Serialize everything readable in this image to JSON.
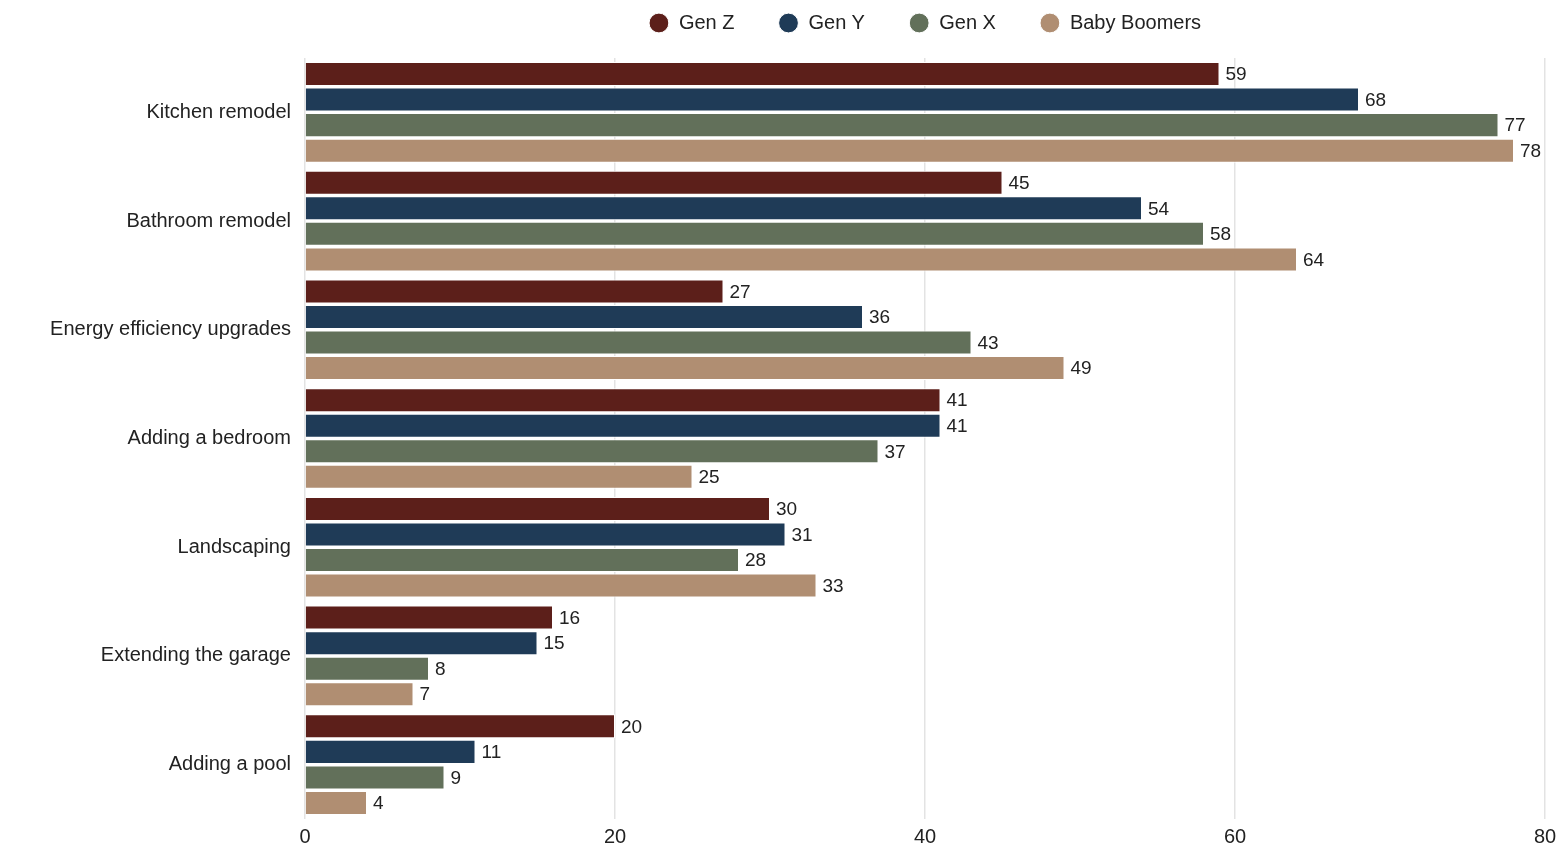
{
  "chart_data": {
    "type": "bar",
    "orientation": "horizontal",
    "categories": [
      "Kitchen remodel",
      "Bathroom remodel",
      "Energy efficiency upgrades",
      "Adding a bedroom",
      "Landscaping",
      "Extending the garage",
      "Adding a pool"
    ],
    "series": [
      {
        "name": "Gen Z",
        "color": "#5c1f1a",
        "values": [
          59,
          45,
          27,
          41,
          30,
          16,
          20
        ]
      },
      {
        "name": "Gen Y",
        "color": "#1f3b57",
        "values": [
          68,
          54,
          36,
          41,
          31,
          15,
          11
        ]
      },
      {
        "name": "Gen X",
        "color": "#62705a",
        "values": [
          77,
          58,
          43,
          37,
          28,
          8,
          9
        ]
      },
      {
        "name": "Baby Boomers",
        "color": "#b08e72",
        "values": [
          78,
          64,
          49,
          25,
          33,
          7,
          4
        ]
      }
    ],
    "xlim": [
      0,
      80
    ],
    "xticks": [
      0,
      20,
      40,
      60,
      80
    ],
    "grid": "x",
    "legend": "top",
    "data_labels": true
  }
}
